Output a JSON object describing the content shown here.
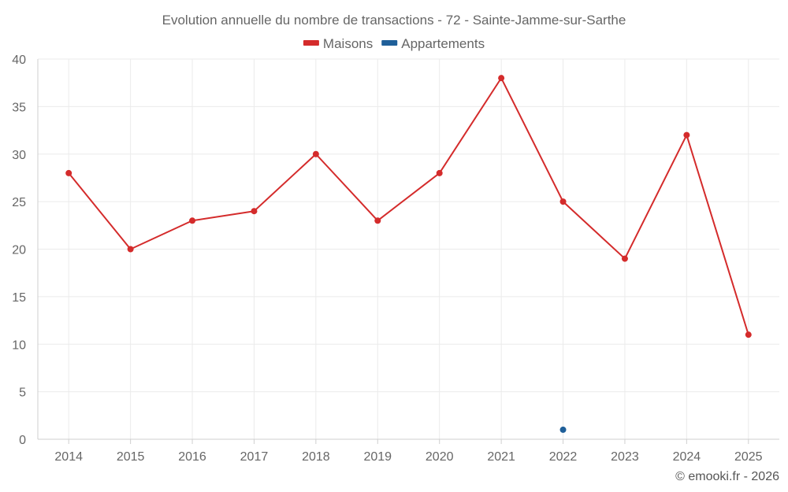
{
  "chart_data": {
    "type": "line",
    "title": "Evolution annuelle du nombre de transactions - 72 - Sainte-Jamme-sur-Sarthe",
    "categories": [
      "2014",
      "2015",
      "2016",
      "2017",
      "2018",
      "2019",
      "2020",
      "2021",
      "2022",
      "2023",
      "2024",
      "2025"
    ],
    "series": [
      {
        "name": "Maisons",
        "color": "#d42b2b",
        "values": [
          28,
          20,
          23,
          24,
          30,
          23,
          28,
          38,
          25,
          19,
          32,
          11
        ]
      },
      {
        "name": "Appartements",
        "color": "#1f5f99",
        "values": [
          null,
          null,
          null,
          null,
          null,
          null,
          null,
          null,
          1,
          null,
          null,
          null
        ]
      }
    ],
    "ylim": [
      0,
      40
    ],
    "yticks": [
      0,
      5,
      10,
      15,
      20,
      25,
      30,
      35,
      40
    ],
    "xlabel": "",
    "ylabel": "",
    "grid": true,
    "legend_position": "top-center"
  },
  "credit": "© emooki.fr - 2026"
}
